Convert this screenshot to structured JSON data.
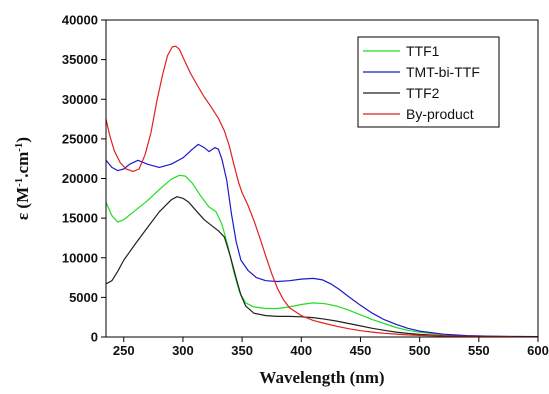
{
  "chart_data": {
    "type": "line",
    "xlabel": "Wavelength (nm)",
    "ylabel": {
      "prefix": "ε (M",
      "sup1": "-1",
      "mid": ".cm",
      "sup2": "-1",
      "suffix": ")"
    },
    "xlim": [
      235,
      600
    ],
    "ylim": [
      0,
      40000
    ],
    "xticks": [
      250,
      300,
      350,
      400,
      450,
      500,
      550,
      600
    ],
    "yticks": [
      0,
      5000,
      10000,
      15000,
      20000,
      25000,
      30000,
      35000,
      40000
    ],
    "grid": false,
    "legend_position": "top-right",
    "series": [
      {
        "name": "TTF1",
        "color": "#22dd22",
        "points": [
          [
            235,
            17000
          ],
          [
            240,
            15300
          ],
          [
            245,
            14500
          ],
          [
            250,
            14800
          ],
          [
            260,
            16000
          ],
          [
            270,
            17200
          ],
          [
            280,
            18600
          ],
          [
            290,
            19900
          ],
          [
            297,
            20400
          ],
          [
            302,
            20300
          ],
          [
            308,
            19400
          ],
          [
            315,
            17800
          ],
          [
            322,
            16400
          ],
          [
            328,
            15800
          ],
          [
            333,
            14200
          ],
          [
            338,
            11500
          ],
          [
            343,
            8200
          ],
          [
            348,
            5600
          ],
          [
            353,
            4300
          ],
          [
            360,
            3800
          ],
          [
            370,
            3600
          ],
          [
            380,
            3600
          ],
          [
            390,
            3800
          ],
          [
            400,
            4100
          ],
          [
            410,
            4300
          ],
          [
            420,
            4200
          ],
          [
            430,
            3900
          ],
          [
            440,
            3400
          ],
          [
            450,
            2800
          ],
          [
            460,
            2200
          ],
          [
            470,
            1700
          ],
          [
            480,
            1200
          ],
          [
            490,
            850
          ],
          [
            500,
            600
          ],
          [
            520,
            300
          ],
          [
            540,
            150
          ],
          [
            560,
            90
          ],
          [
            580,
            60
          ],
          [
            600,
            50
          ]
        ]
      },
      {
        "name": "TMT-bi-TTF",
        "color": "#1a1acc",
        "points": [
          [
            235,
            22300
          ],
          [
            240,
            21400
          ],
          [
            245,
            21000
          ],
          [
            250,
            21200
          ],
          [
            255,
            21800
          ],
          [
            262,
            22300
          ],
          [
            270,
            21800
          ],
          [
            280,
            21400
          ],
          [
            290,
            21800
          ],
          [
            300,
            22600
          ],
          [
            308,
            23700
          ],
          [
            313,
            24300
          ],
          [
            318,
            23900
          ],
          [
            322,
            23400
          ],
          [
            327,
            23900
          ],
          [
            330,
            23700
          ],
          [
            333,
            22400
          ],
          [
            337,
            19800
          ],
          [
            341,
            15500
          ],
          [
            345,
            12000
          ],
          [
            349,
            9700
          ],
          [
            355,
            8400
          ],
          [
            362,
            7500
          ],
          [
            370,
            7100
          ],
          [
            380,
            7000
          ],
          [
            390,
            7100
          ],
          [
            400,
            7300
          ],
          [
            410,
            7400
          ],
          [
            418,
            7200
          ],
          [
            425,
            6700
          ],
          [
            432,
            6000
          ],
          [
            440,
            5100
          ],
          [
            450,
            4000
          ],
          [
            460,
            3000
          ],
          [
            470,
            2200
          ],
          [
            480,
            1600
          ],
          [
            490,
            1100
          ],
          [
            500,
            750
          ],
          [
            520,
            350
          ],
          [
            540,
            180
          ],
          [
            560,
            100
          ],
          [
            580,
            60
          ],
          [
            600,
            50
          ]
        ]
      },
      {
        "name": "TTF2",
        "color": "#222222",
        "points": [
          [
            235,
            6700
          ],
          [
            240,
            7100
          ],
          [
            245,
            8300
          ],
          [
            250,
            9700
          ],
          [
            260,
            11800
          ],
          [
            270,
            13800
          ],
          [
            280,
            15800
          ],
          [
            290,
            17300
          ],
          [
            295,
            17700
          ],
          [
            300,
            17500
          ],
          [
            305,
            17000
          ],
          [
            312,
            15800
          ],
          [
            318,
            14800
          ],
          [
            324,
            14100
          ],
          [
            330,
            13400
          ],
          [
            335,
            12600
          ],
          [
            340,
            10200
          ],
          [
            345,
            7400
          ],
          [
            349,
            5300
          ],
          [
            353,
            3900
          ],
          [
            360,
            3000
          ],
          [
            370,
            2700
          ],
          [
            380,
            2600
          ],
          [
            390,
            2600
          ],
          [
            400,
            2550
          ],
          [
            410,
            2450
          ],
          [
            420,
            2250
          ],
          [
            430,
            2000
          ],
          [
            440,
            1700
          ],
          [
            450,
            1400
          ],
          [
            460,
            1100
          ],
          [
            470,
            850
          ],
          [
            480,
            620
          ],
          [
            490,
            450
          ],
          [
            500,
            330
          ],
          [
            520,
            170
          ],
          [
            540,
            90
          ],
          [
            560,
            60
          ],
          [
            580,
            40
          ],
          [
            600,
            30
          ]
        ]
      },
      {
        "name": "By-product",
        "color": "#dd2222",
        "points": [
          [
            235,
            27500
          ],
          [
            238,
            25500
          ],
          [
            242,
            23500
          ],
          [
            247,
            22000
          ],
          [
            252,
            21200
          ],
          [
            258,
            20900
          ],
          [
            263,
            21200
          ],
          [
            268,
            23000
          ],
          [
            273,
            25800
          ],
          [
            278,
            29800
          ],
          [
            283,
            33200
          ],
          [
            287,
            35500
          ],
          [
            291,
            36600
          ],
          [
            294,
            36700
          ],
          [
            297,
            36300
          ],
          [
            301,
            35000
          ],
          [
            306,
            33400
          ],
          [
            312,
            31800
          ],
          [
            318,
            30300
          ],
          [
            324,
            29000
          ],
          [
            330,
            27600
          ],
          [
            335,
            26000
          ],
          [
            339,
            24200
          ],
          [
            343,
            21800
          ],
          [
            347,
            19500
          ],
          [
            350,
            18200
          ],
          [
            355,
            16600
          ],
          [
            360,
            14700
          ],
          [
            365,
            12500
          ],
          [
            370,
            10200
          ],
          [
            375,
            8000
          ],
          [
            380,
            6100
          ],
          [
            385,
            4700
          ],
          [
            390,
            3700
          ],
          [
            400,
            2700
          ],
          [
            410,
            2100
          ],
          [
            420,
            1700
          ],
          [
            430,
            1350
          ],
          [
            440,
            1050
          ],
          [
            450,
            800
          ],
          [
            460,
            620
          ],
          [
            470,
            470
          ],
          [
            480,
            360
          ],
          [
            490,
            270
          ],
          [
            500,
            200
          ],
          [
            520,
            130
          ],
          [
            540,
            90
          ],
          [
            560,
            60
          ],
          [
            580,
            40
          ],
          [
            600,
            30
          ]
        ]
      }
    ]
  }
}
